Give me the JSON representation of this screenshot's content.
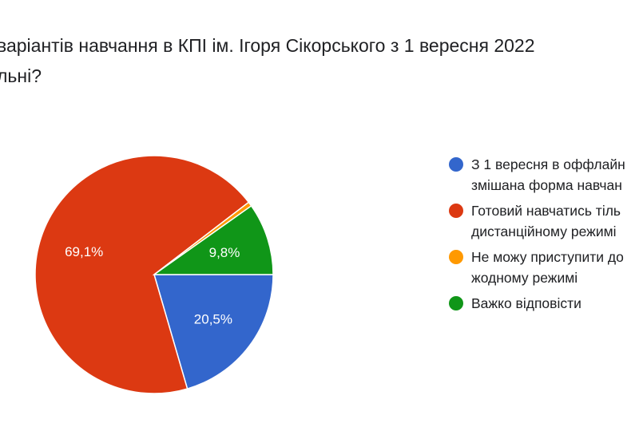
{
  "title": {
    "line1": "варіантів  навчання в КПІ ім. Ігоря Сікорського з 1 вересня 2022",
    "line2": "льні?"
  },
  "chart_data": {
    "type": "pie",
    "title": "варіантів  навчання в КПІ ім. Ігоря Сікорського з 1 вересня 2022 льні?",
    "slices": [
      {
        "legend_lines": [
          "З 1 вересня в оффлайн",
          "змішана форма навчан"
        ],
        "value": 20.5,
        "label": "20,5%",
        "color": "#3366cc"
      },
      {
        "legend_lines": [
          "Готовий навчатись тіль",
          "дистанційному режимі"
        ],
        "value": 69.1,
        "label": "69,1%",
        "color": "#dc3912"
      },
      {
        "legend_lines": [
          "Не можу приступити до",
          "жодному режимі"
        ],
        "value": 0.6,
        "label": "",
        "color": "#ff9900"
      },
      {
        "legend_lines": [
          "Важко відповісти"
        ],
        "value": 9.8,
        "label": "9,8%",
        "color": "#109618"
      }
    ],
    "legend_position": "right"
  }
}
